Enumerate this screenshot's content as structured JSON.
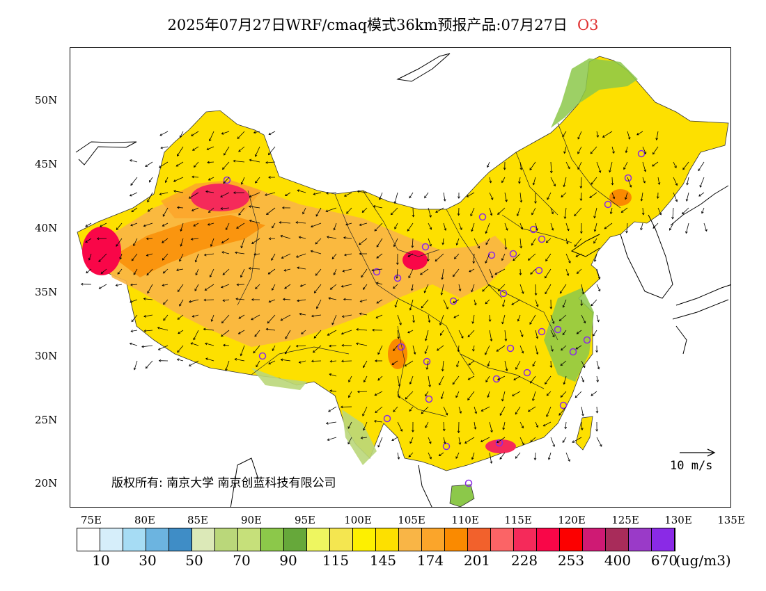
{
  "title": {
    "main": "2025年07月27日WRF/cmaq模式36km预报产品:07月27日",
    "species": "O3"
  },
  "map": {
    "lat_labels": [
      "50N",
      "45N",
      "40N",
      "35N",
      "30N",
      "25N",
      "20N"
    ],
    "lon_labels": [
      "75E",
      "80E",
      "85E",
      "90E",
      "95E",
      "100E",
      "105E",
      "110E",
      "115E",
      "120E",
      "125E",
      "130E",
      "135E"
    ],
    "copyright": "版权所有: 南京大学 南京创蓝科技有限公司",
    "wind_reference": "10 m/s"
  },
  "colorbar": {
    "labels": [
      "10",
      "30",
      "50",
      "70",
      "90",
      "115",
      "145",
      "174",
      "201",
      "228",
      "253",
      "400",
      "670"
    ],
    "units": "(ug/m3)",
    "colors": [
      "#ffffff",
      "#d6eefa",
      "#a6dcf4",
      "#6cb4e0",
      "#3f8dc6",
      "#dce9b8",
      "#bad77a",
      "#c6e07a",
      "#8cc84a",
      "#66a83a",
      "#eef660",
      "#f4e650",
      "#fdf000",
      "#fde000",
      "#f9b546",
      "#fba52a",
      "#fa8a00",
      "#f2612c",
      "#fb6466",
      "#f52a5a",
      "#f90648",
      "#fc0000",
      "#cf1a74",
      "#a82c5a",
      "#9a3ac8",
      "#8a2ae6"
    ]
  }
}
